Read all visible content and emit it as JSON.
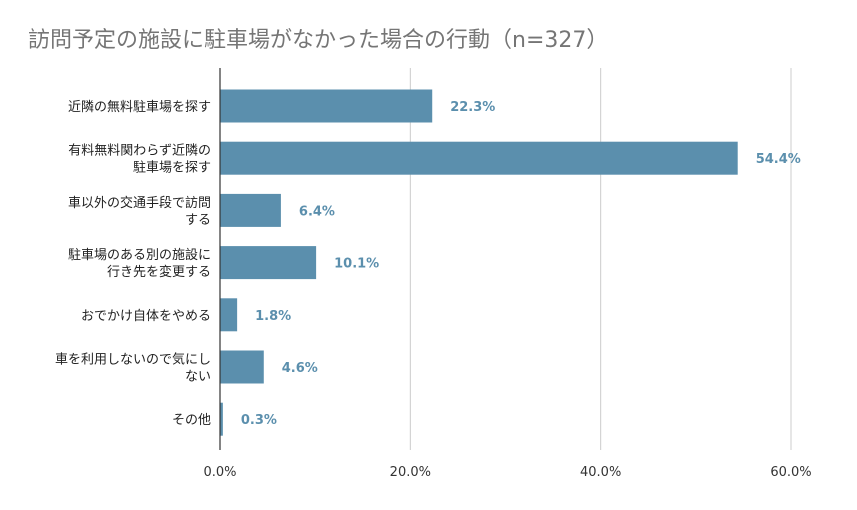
{
  "chart_data": {
    "type": "bar",
    "orientation": "horizontal",
    "title": "訪問予定の施設に駐車場がなかった場合の行動（n=327）",
    "categories": [
      [
        "近隣の無料駐車場を探す"
      ],
      [
        "有料無料関わらず近隣の",
        "駐車場を探す"
      ],
      [
        "車以外の交通手段で訪問",
        "する"
      ],
      [
        "駐車場のある別の施設に",
        "行き先を変更する"
      ],
      [
        "おでかけ自体をやめる"
      ],
      [
        "車を利用しないので気にし",
        "ない"
      ],
      [
        "その他"
      ]
    ],
    "values": [
      22.3,
      54.4,
      6.4,
      10.1,
      1.8,
      4.6,
      0.3
    ],
    "value_labels": [
      "22.3%",
      "54.4%",
      "6.4%",
      "10.1%",
      "1.8%",
      "4.6%",
      "0.3%"
    ],
    "xlim": [
      0,
      60
    ],
    "xticks": [
      0,
      20,
      40,
      60
    ],
    "xtick_labels": [
      "0.0%",
      "20.0%",
      "40.0%",
      "60.0%"
    ],
    "grid": true,
    "legend": "none",
    "colors": {
      "bar": "#5b8fad",
      "value_label": "#5b8fad",
      "grid": "#cccccc",
      "axis": "#333333"
    }
  }
}
